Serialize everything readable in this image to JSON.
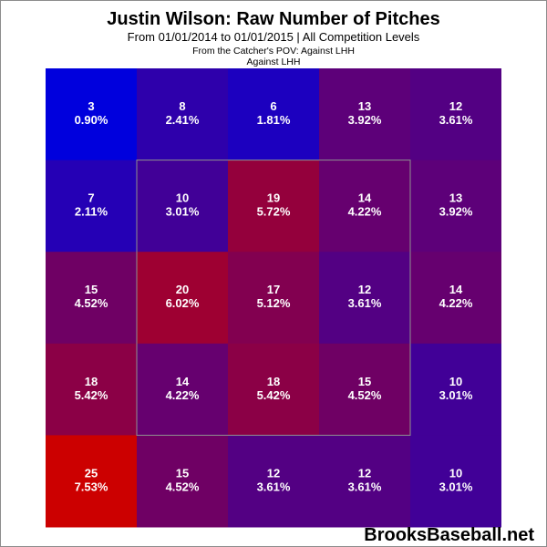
{
  "chart_data": {
    "type": "heatmap",
    "title": "Justin Wilson: Raw Number of Pitches",
    "subtitle": "From 01/01/2014 to 01/01/2015 | All Competition Levels",
    "pov_label": "From the Catcher's POV:   Against LHH",
    "handedness_label": "Against LHH",
    "rows": 5,
    "cols": 5,
    "cells": [
      [
        {
          "count": "3",
          "pct": "0.90%"
        },
        {
          "count": "8",
          "pct": "2.41%"
        },
        {
          "count": "6",
          "pct": "1.81%"
        },
        {
          "count": "13",
          "pct": "3.92%"
        },
        {
          "count": "12",
          "pct": "3.61%"
        }
      ],
      [
        {
          "count": "7",
          "pct": "2.11%"
        },
        {
          "count": "10",
          "pct": "3.01%"
        },
        {
          "count": "19",
          "pct": "5.72%"
        },
        {
          "count": "14",
          "pct": "4.22%"
        },
        {
          "count": "13",
          "pct": "3.92%"
        }
      ],
      [
        {
          "count": "15",
          "pct": "4.52%"
        },
        {
          "count": "20",
          "pct": "6.02%"
        },
        {
          "count": "17",
          "pct": "5.12%"
        },
        {
          "count": "12",
          "pct": "3.61%"
        },
        {
          "count": "14",
          "pct": "4.22%"
        }
      ],
      [
        {
          "count": "18",
          "pct": "5.42%"
        },
        {
          "count": "14",
          "pct": "4.22%"
        },
        {
          "count": "18",
          "pct": "5.42%"
        },
        {
          "count": "15",
          "pct": "4.52%"
        },
        {
          "count": "10",
          "pct": "3.01%"
        }
      ],
      [
        {
          "count": "25",
          "pct": "7.53%"
        },
        {
          "count": "15",
          "pct": "4.52%"
        },
        {
          "count": "12",
          "pct": "3.61%"
        },
        {
          "count": "12",
          "pct": "3.61%"
        },
        {
          "count": "10",
          "pct": "3.01%"
        }
      ]
    ],
    "strike_zone": {
      "row_start": 1,
      "row_end": 3,
      "col_start": 1,
      "col_end": 3
    },
    "color_scale": {
      "low": "#0000dd",
      "high": "#cc0000",
      "strike_zone_border": "#909090"
    }
  },
  "watermark": "BrooksBaseball.net"
}
